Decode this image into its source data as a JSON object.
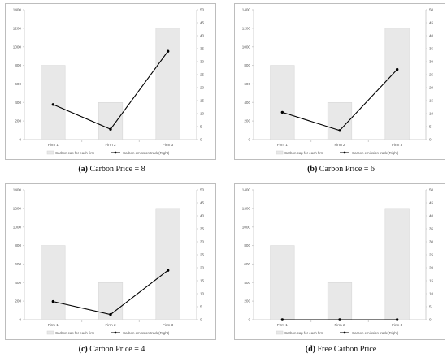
{
  "chart_data": [
    {
      "type": "bar",
      "categories": [
        "Firm 1",
        "Firm 2",
        "Firm 3"
      ],
      "series": [
        {
          "name": "Carbon cap for each firm",
          "kind": "bar",
          "axis": "left",
          "values": [
            800,
            400,
            1200
          ]
        },
        {
          "name": "Carbon emission trade(Right)",
          "kind": "line",
          "axis": "right",
          "values": [
            13.5,
            4,
            34
          ]
        }
      ],
      "ylim_left": [
        0,
        1400
      ],
      "yticks_left": [
        "0",
        "200",
        "400",
        "600",
        "800",
        "1000",
        "1200",
        "1400"
      ],
      "ylim_right": [
        0,
        50
      ],
      "yticks_right": [
        "0",
        "5",
        "10",
        "15",
        "20",
        "25",
        "30",
        "35",
        "40",
        "45",
        "50"
      ],
      "caption_letter": "(a)",
      "caption_text": "Carbon Price = 8",
      "colors": {
        "bar": "#e8e8e8",
        "line": "#000000",
        "axis": "#d0d0d0"
      }
    },
    {
      "type": "bar",
      "categories": [
        "Firm 1",
        "Firm 2",
        "Firm 3"
      ],
      "series": [
        {
          "name": "Carbon cap for each firm",
          "kind": "bar",
          "axis": "left",
          "values": [
            800,
            400,
            1200
          ]
        },
        {
          "name": "Carbon emission trade(Right)",
          "kind": "line",
          "axis": "right",
          "values": [
            10.5,
            3.5,
            27
          ]
        }
      ],
      "ylim_left": [
        0,
        1400
      ],
      "yticks_left": [
        "0",
        "200",
        "400",
        "600",
        "800",
        "1000",
        "1200",
        "1400"
      ],
      "ylim_right": [
        0,
        50
      ],
      "yticks_right": [
        "0",
        "5",
        "10",
        "15",
        "20",
        "25",
        "30",
        "35",
        "40",
        "45",
        "50"
      ],
      "caption_letter": "(b)",
      "caption_text": "Carbon Price = 6",
      "colors": {
        "bar": "#e8e8e8",
        "line": "#000000",
        "axis": "#d0d0d0"
      }
    },
    {
      "type": "bar",
      "categories": [
        "Firm 1",
        "Firm 2",
        "Firm 3"
      ],
      "series": [
        {
          "name": "Carbon cap for each firm",
          "kind": "bar",
          "axis": "left",
          "values": [
            800,
            400,
            1200
          ]
        },
        {
          "name": "Carbon emission trade(Right)",
          "kind": "line",
          "axis": "right",
          "values": [
            7,
            2,
            19
          ]
        }
      ],
      "ylim_left": [
        0,
        1400
      ],
      "yticks_left": [
        "0",
        "200",
        "400",
        "600",
        "800",
        "1000",
        "1200",
        "1400"
      ],
      "ylim_right": [
        0,
        50
      ],
      "yticks_right": [
        "0",
        "5",
        "10",
        "15",
        "20",
        "25",
        "30",
        "35",
        "40",
        "45",
        "50"
      ],
      "caption_letter": "(c)",
      "caption_text": "Carbon Price = 4",
      "colors": {
        "bar": "#e8e8e8",
        "line": "#000000",
        "axis": "#d0d0d0"
      }
    },
    {
      "type": "bar",
      "categories": [
        "Firm 1",
        "Firm 2",
        "Firm 3"
      ],
      "series": [
        {
          "name": "Carbon cap for each firm",
          "kind": "bar",
          "axis": "left",
          "values": [
            800,
            400,
            1200
          ]
        },
        {
          "name": "Carbon emission trade(Right)",
          "kind": "line",
          "axis": "right",
          "values": [
            0,
            0,
            0
          ]
        }
      ],
      "ylim_left": [
        0,
        1400
      ],
      "yticks_left": [
        "0",
        "200",
        "400",
        "600",
        "800",
        "1000",
        "1200",
        "1400"
      ],
      "ylim_right": [
        0,
        50
      ],
      "yticks_right": [
        "0",
        "5",
        "10",
        "15",
        "20",
        "25",
        "30",
        "35",
        "40",
        "45",
        "50"
      ],
      "caption_letter": "(d)",
      "caption_text": "Free Carbon Price",
      "colors": {
        "bar": "#e8e8e8",
        "line": "#000000",
        "axis": "#d0d0d0"
      }
    }
  ]
}
